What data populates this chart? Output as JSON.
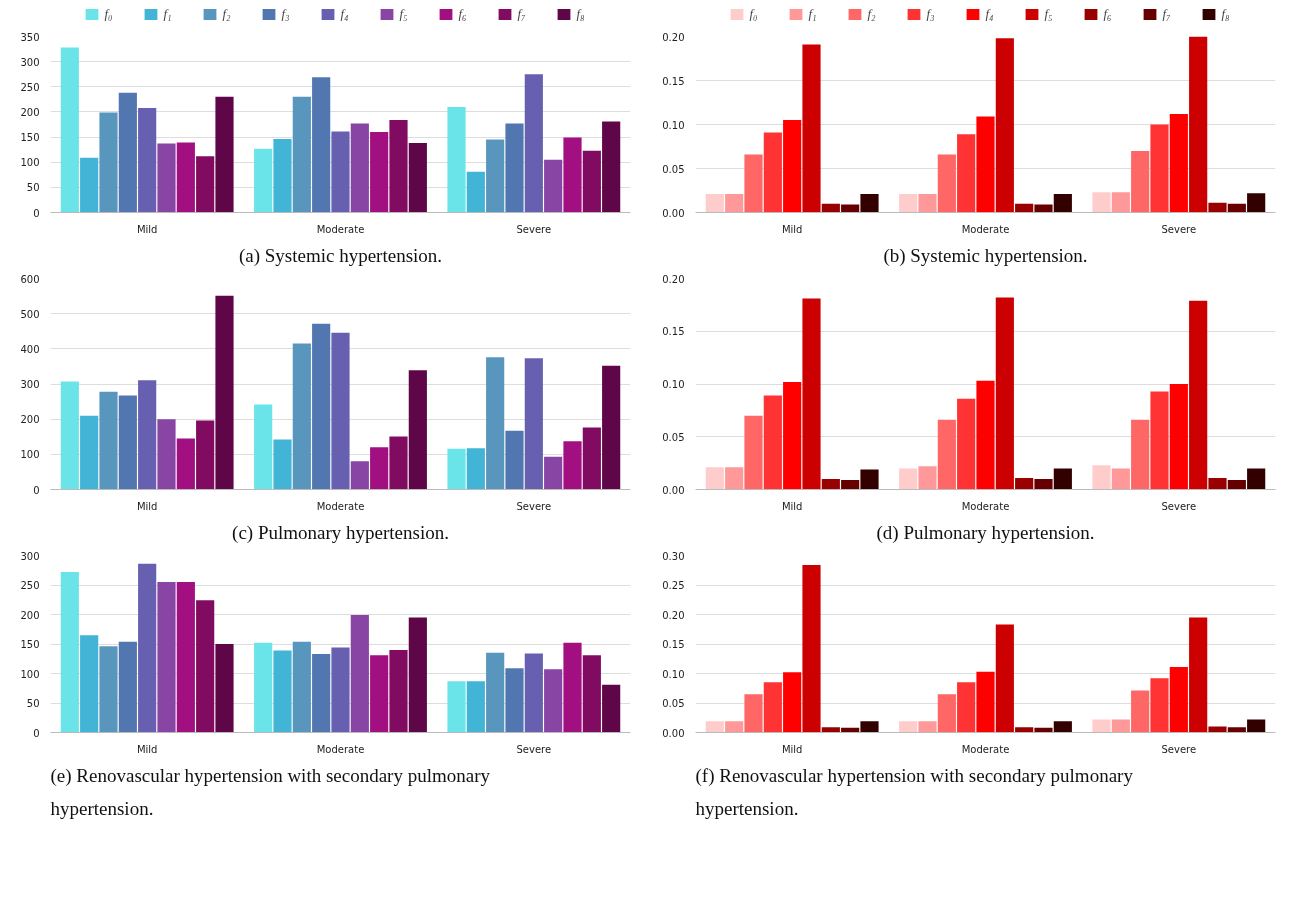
{
  "chart_data": [
    {
      "type": "bar",
      "title": "(a) Systemic hypertension.",
      "categories": [
        "Mild",
        "Moderate",
        "Severe"
      ],
      "ylim": [
        0,
        350
      ],
      "yticks": [
        0,
        50,
        100,
        150,
        200,
        250,
        300,
        350
      ],
      "grid": "y",
      "legend": "top",
      "series": [
        {
          "name": "f₀",
          "color": "#6ae4e8",
          "values": [
            328,
            127,
            210
          ]
        },
        {
          "name": "f₁",
          "color": "#42b5d6",
          "values": [
            109,
            146,
            81
          ]
        },
        {
          "name": "f₂",
          "color": "#5896bd",
          "values": [
            199,
            230,
            145
          ]
        },
        {
          "name": "f₃",
          "color": "#5277b0",
          "values": [
            238,
            269,
            177
          ]
        },
        {
          "name": "f₄",
          "color": "#6760b0",
          "values": [
            208,
            161,
            275
          ]
        },
        {
          "name": "f₅",
          "color": "#8845a3",
          "values": [
            137,
            177,
            105
          ]
        },
        {
          "name": "f₆",
          "color": "#a10f80",
          "values": [
            139,
            160,
            149
          ]
        },
        {
          "name": "f₇",
          "color": "#800b60",
          "values": [
            112,
            184,
            123
          ]
        },
        {
          "name": "f₈",
          "color": "#5e0648",
          "values": [
            230,
            138,
            181
          ]
        }
      ]
    },
    {
      "type": "bar",
      "title": "(b) Systemic hypertension.",
      "categories": [
        "Mild",
        "Moderate",
        "Severe"
      ],
      "ylim": [
        0,
        0.2
      ],
      "yticks": [
        {
          "value": 0,
          "label": "0.00"
        },
        0.05,
        {
          "value": 0.1,
          "label": "0.10"
        },
        0.15,
        {
          "value": 0.2,
          "label": "0.20"
        }
      ],
      "grid": "y",
      "legend": "top",
      "series": [
        {
          "name": "f₀",
          "color": "#ffcccc",
          "values": [
            0.021,
            0.021,
            0.023
          ]
        },
        {
          "name": "f₁",
          "color": "#ff9999",
          "values": [
            0.021,
            0.021,
            0.023
          ]
        },
        {
          "name": "f₂",
          "color": "#ff6666",
          "values": [
            0.066,
            0.066,
            0.07
          ]
        },
        {
          "name": "f₃",
          "color": "#ff3333",
          "values": [
            0.091,
            0.089,
            0.1
          ]
        },
        {
          "name": "f₄",
          "color": "#ff0000",
          "values": [
            0.105,
            0.109,
            0.112
          ]
        },
        {
          "name": "f₅",
          "color": "#cc0000",
          "values": [
            0.191,
            0.198,
            0.2
          ]
        },
        {
          "name": "f₆",
          "color": "#990000",
          "values": [
            0.01,
            0.01,
            0.011
          ]
        },
        {
          "name": "f₇",
          "color": "#660000",
          "values": [
            0.009,
            0.009,
            0.01
          ]
        },
        {
          "name": "f₈",
          "color": "#330000",
          "values": [
            0.021,
            0.021,
            0.022
          ]
        }
      ]
    },
    {
      "type": "bar",
      "title": "(c) Pulmonary hypertension.",
      "categories": [
        "Mild",
        "Moderate",
        "Severe"
      ],
      "ylim": [
        0,
        600
      ],
      "yticks": [
        0,
        100,
        200,
        300,
        400,
        500,
        600
      ],
      "grid": "y",
      "series": [
        {
          "color": "#6ae4e8",
          "values": [
            307,
            242,
            116
          ]
        },
        {
          "color": "#42b5d6",
          "values": [
            210,
            142,
            117
          ]
        },
        {
          "color": "#5896bd",
          "values": [
            278,
            415,
            376
          ]
        },
        {
          "color": "#5277b0",
          "values": [
            267,
            471,
            167
          ]
        },
        {
          "color": "#6760b0",
          "values": [
            311,
            446,
            373
          ]
        },
        {
          "color": "#8845a3",
          "values": [
            200,
            80,
            93
          ]
        },
        {
          "color": "#a10f80",
          "values": [
            145,
            120,
            137
          ]
        },
        {
          "color": "#800b60",
          "values": [
            196,
            151,
            176
          ]
        },
        {
          "color": "#5e0648",
          "values": [
            551,
            339,
            352
          ]
        }
      ]
    },
    {
      "type": "bar",
      "title": "(d) Pulmonary hypertension.",
      "categories": [
        "Mild",
        "Moderate",
        "Severe"
      ],
      "ylim": [
        0,
        0.2
      ],
      "yticks": [
        {
          "value": 0,
          "label": "0.00"
        },
        0.05,
        {
          "value": 0.1,
          "label": "0.10"
        },
        0.15,
        {
          "value": 0.2,
          "label": "0.20"
        }
      ],
      "grid": "y",
      "series": [
        {
          "color": "#ffcccc",
          "values": [
            0.021,
            0.02,
            0.023
          ]
        },
        {
          "color": "#ff9999",
          "values": [
            0.021,
            0.022,
            0.02
          ]
        },
        {
          "color": "#ff6666",
          "values": [
            0.07,
            0.066,
            0.066
          ]
        },
        {
          "color": "#ff3333",
          "values": [
            0.089,
            0.086,
            0.093
          ]
        },
        {
          "color": "#ff0000",
          "values": [
            0.102,
            0.103,
            0.1
          ]
        },
        {
          "color": "#cc0000",
          "values": [
            0.181,
            0.182,
            0.179
          ]
        },
        {
          "color": "#990000",
          "values": [
            0.01,
            0.011,
            0.011
          ]
        },
        {
          "color": "#660000",
          "values": [
            0.009,
            0.01,
            0.009
          ]
        },
        {
          "color": "#330000",
          "values": [
            0.019,
            0.02,
            0.02
          ]
        }
      ]
    },
    {
      "type": "bar",
      "title": "(e) Renovascular hypertension with secondary pulmonary hypertension.",
      "categories": [
        "Mild",
        "Moderate",
        "Severe"
      ],
      "ylim": [
        0,
        300
      ],
      "yticks": [
        0,
        50,
        100,
        150,
        200,
        250,
        300
      ],
      "grid": "y",
      "series": [
        {
          "color": "#6ae4e8",
          "values": [
            272,
            152,
            87
          ]
        },
        {
          "color": "#42b5d6",
          "values": [
            165,
            139,
            87
          ]
        },
        {
          "color": "#5896bd",
          "values": [
            146,
            154,
            135
          ]
        },
        {
          "color": "#5277b0",
          "values": [
            154,
            133,
            109
          ]
        },
        {
          "color": "#6760b0",
          "values": [
            286,
            144,
            134
          ]
        },
        {
          "color": "#8845a3",
          "values": [
            255,
            199,
            107
          ]
        },
        {
          "color": "#a10f80",
          "values": [
            255,
            131,
            152
          ]
        },
        {
          "color": "#800b60",
          "values": [
            224,
            140,
            131
          ]
        },
        {
          "color": "#5e0648",
          "values": [
            150,
            195,
            81
          ]
        }
      ]
    },
    {
      "type": "bar",
      "title": "(f) Renovascular hypertension with secondary pulmonary hypertension.",
      "categories": [
        "Mild",
        "Moderate",
        "Severe"
      ],
      "ylim": [
        0,
        0.3
      ],
      "yticks": [
        {
          "value": 0,
          "label": "0.00"
        },
        0.05,
        {
          "value": 0.1,
          "label": "0.10"
        },
        0.15,
        {
          "value": 0.2,
          "label": "0.20"
        },
        0.25,
        {
          "value": 0.3,
          "label": "0.30"
        }
      ],
      "grid": "y",
      "series": [
        {
          "color": "#ffcccc",
          "values": [
            0.019,
            0.019,
            0.022
          ]
        },
        {
          "color": "#ff9999",
          "values": [
            0.019,
            0.019,
            0.022
          ]
        },
        {
          "color": "#ff6666",
          "values": [
            0.065,
            0.065,
            0.071
          ]
        },
        {
          "color": "#ff3333",
          "values": [
            0.085,
            0.085,
            0.092
          ]
        },
        {
          "color": "#ff0000",
          "values": [
            0.102,
            0.103,
            0.111
          ]
        },
        {
          "color": "#cc0000",
          "values": [
            0.284,
            0.183,
            0.195
          ]
        },
        {
          "color": "#990000",
          "values": [
            0.009,
            0.009,
            0.01
          ]
        },
        {
          "color": "#660000",
          "values": [
            0.008,
            0.008,
            0.009
          ]
        },
        {
          "color": "#330000",
          "values": [
            0.019,
            0.019,
            0.022
          ]
        }
      ]
    }
  ]
}
